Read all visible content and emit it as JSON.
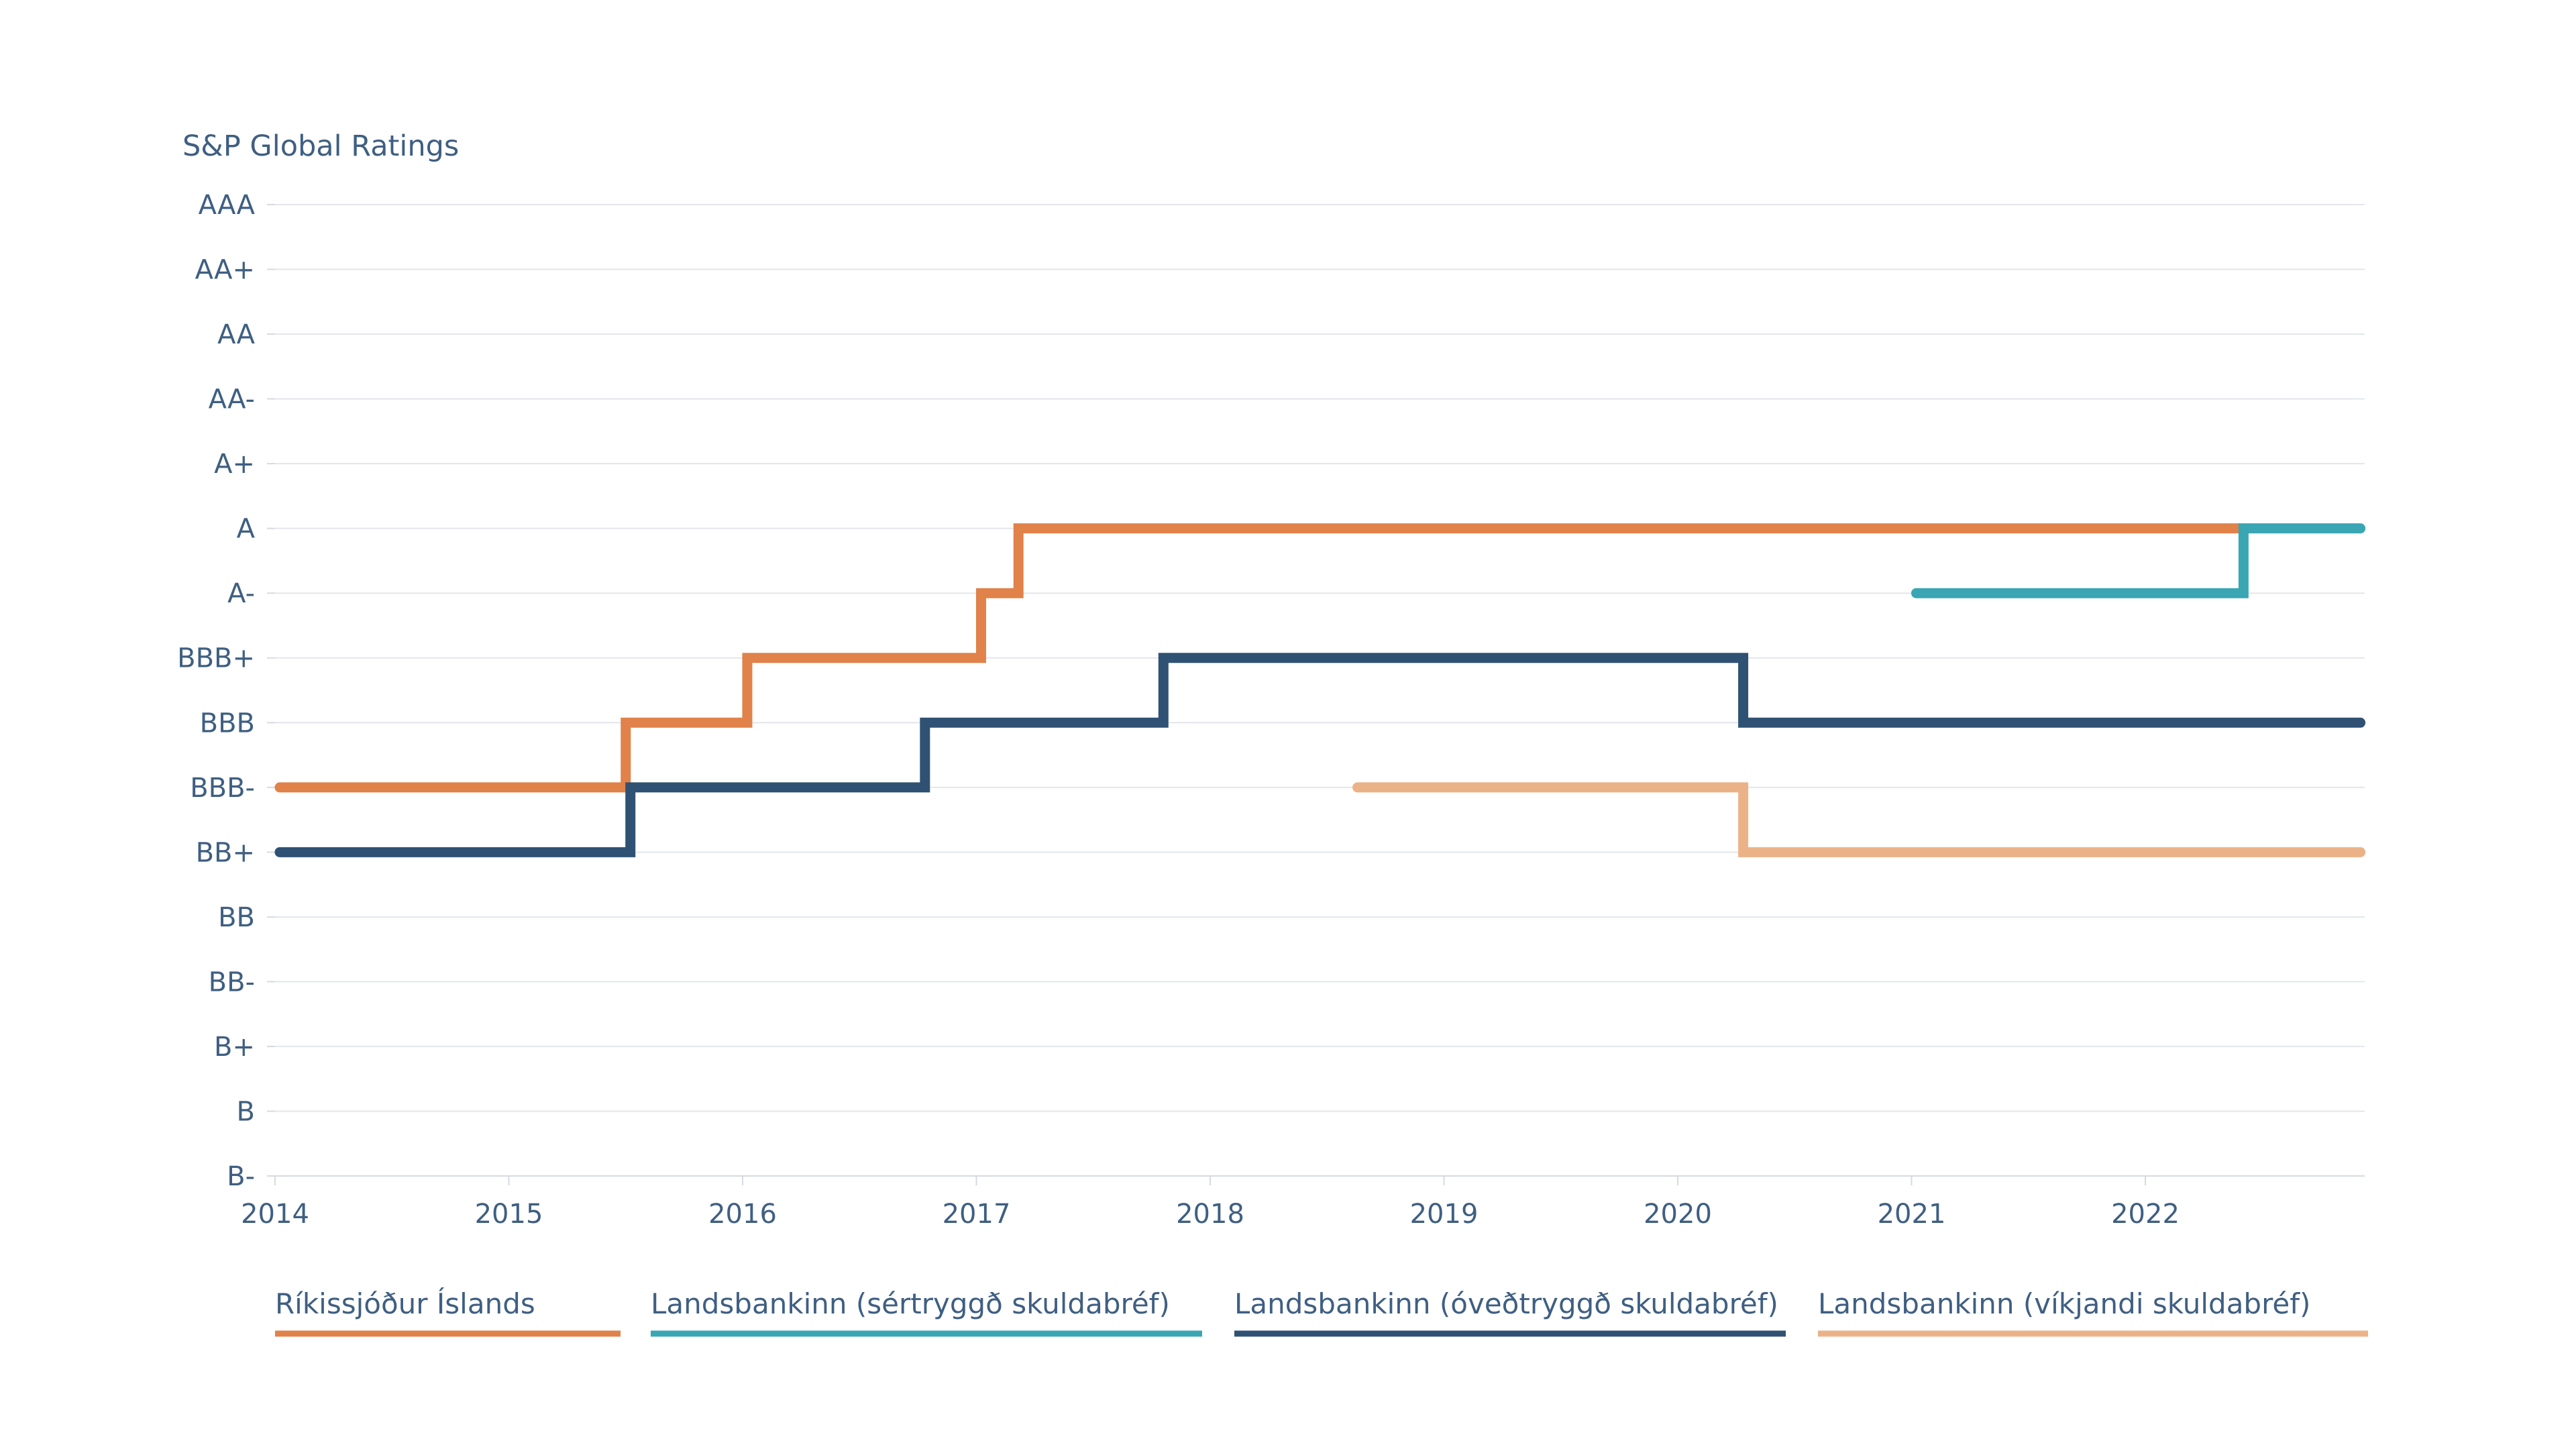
{
  "chart_data": {
    "type": "line",
    "step": true,
    "title": "S&P Global Ratings",
    "xlabel": "",
    "ylabel": "",
    "xlim": [
      2014.0,
      2022.93
    ],
    "x_ticks": [
      "2014",
      "2015",
      "2016",
      "2017",
      "2018",
      "2019",
      "2020",
      "2021",
      "2022"
    ],
    "y_categories": [
      "AAA",
      "AA+",
      "AA",
      "AA-",
      "A+",
      "A",
      "A-",
      "BBB+",
      "BBB",
      "BBB-",
      "BB+",
      "BB",
      "BB-",
      "B+",
      "B",
      "B-"
    ],
    "grid": true,
    "legend_position": "bottom",
    "series": [
      {
        "name": "Ríkissjóður Íslands",
        "color": "#e0824a",
        "points": [
          [
            2014.02,
            "BBB-"
          ],
          [
            2015.5,
            "BBB"
          ],
          [
            2016.02,
            "BBB+"
          ],
          [
            2017.02,
            "A-"
          ],
          [
            2017.18,
            "A"
          ],
          [
            2022.4,
            "A"
          ]
        ]
      },
      {
        "name": "Landsbankinn (sértryggð skuldabréf)",
        "color": "#3aa6b3",
        "points": [
          [
            2021.02,
            "A-"
          ],
          [
            2022.42,
            "A"
          ],
          [
            2022.92,
            "A"
          ]
        ]
      },
      {
        "name": "Landsbankinn (óveðtryggð skuldabréf)",
        "color": "#2f5274",
        "points": [
          [
            2014.02,
            "BB+"
          ],
          [
            2015.52,
            "BBB-"
          ],
          [
            2016.78,
            "BBB"
          ],
          [
            2017.8,
            "BBB+"
          ],
          [
            2020.28,
            "BBB"
          ],
          [
            2022.92,
            "BBB"
          ]
        ]
      },
      {
        "name": "Landsbankinn (víkjandi skuldabréf)",
        "color": "#ecb287",
        "points": [
          [
            2018.63,
            "BBB-"
          ],
          [
            2020.28,
            "BB+"
          ],
          [
            2022.92,
            "BB+"
          ]
        ]
      }
    ]
  }
}
